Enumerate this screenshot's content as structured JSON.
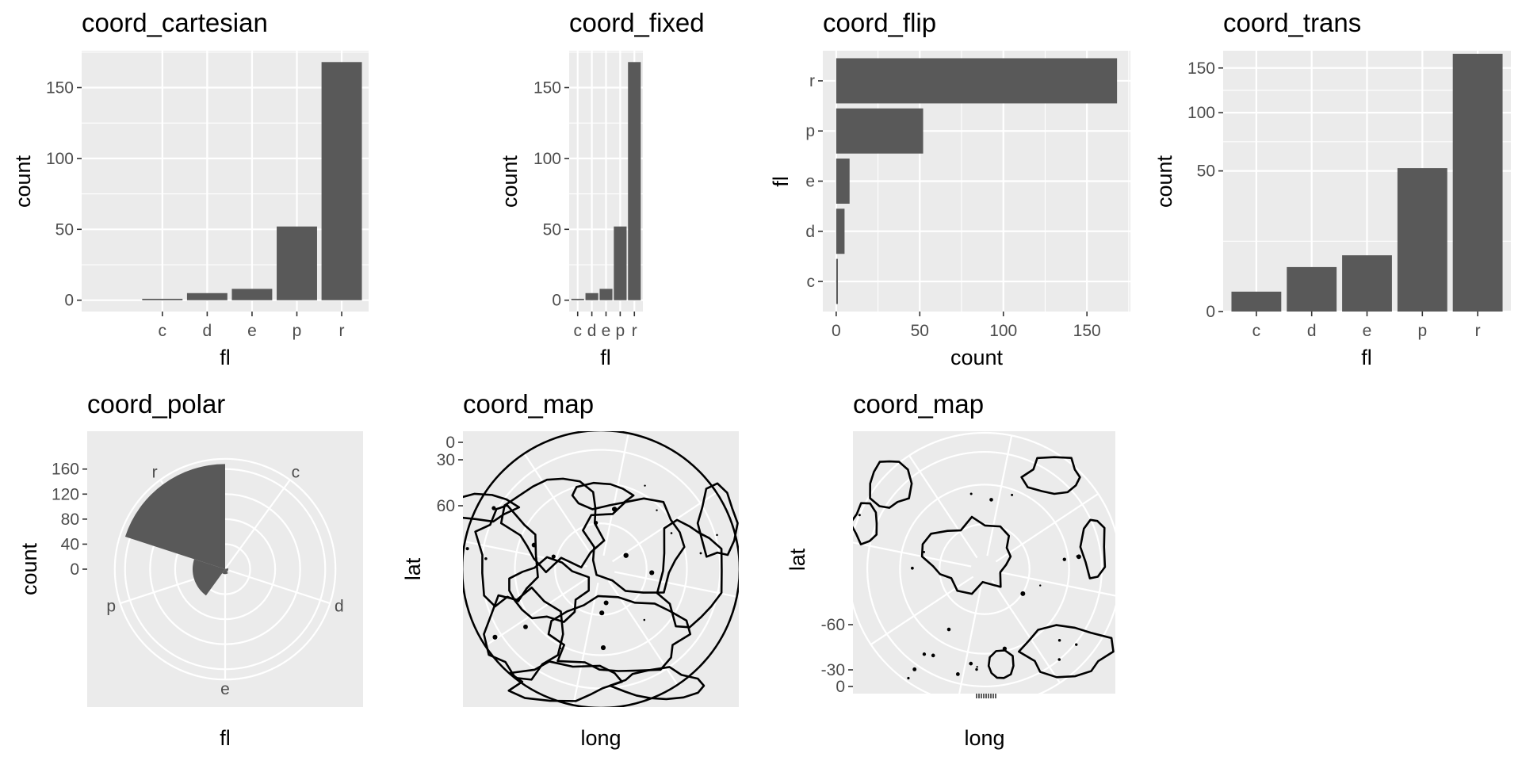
{
  "chart_data": [
    {
      "id": "cartesian",
      "type": "bar",
      "title": "coord_cartesian",
      "xlabel": "fl",
      "ylabel": "count",
      "categories": [
        "c",
        "d",
        "e",
        "p",
        "r"
      ],
      "values": [
        1,
        5,
        8,
        52,
        168
      ],
      "ylim": [
        -8,
        176
      ],
      "yticks": [
        0,
        50,
        100,
        150
      ],
      "xlim": [
        -0.8,
        5.6
      ]
    },
    {
      "id": "fixed",
      "type": "bar",
      "title": "coord_fixed",
      "xlabel": "fl",
      "ylabel": "count",
      "categories": [
        "c",
        "d",
        "e",
        "p",
        "r"
      ],
      "values": [
        1,
        5,
        8,
        52,
        168
      ],
      "ylim": [
        -8,
        176
      ],
      "yticks": [
        0,
        50,
        100,
        150
      ]
    },
    {
      "id": "flip",
      "type": "bar",
      "orientation": "horizontal",
      "title": "coord_flip",
      "xlabel": "count",
      "ylabel": "fl",
      "categories": [
        "c",
        "d",
        "e",
        "p",
        "r"
      ],
      "values": [
        1,
        5,
        8,
        52,
        168
      ],
      "xlim": [
        -8,
        176
      ],
      "xticks": [
        0,
        50,
        100,
        150
      ]
    },
    {
      "id": "trans",
      "type": "bar",
      "title": "coord_trans",
      "xlabel": "fl",
      "ylabel": "count",
      "categories": [
        "c",
        "d",
        "e",
        "p",
        "r"
      ],
      "values": [
        1,
        5,
        8,
        52,
        168
      ],
      "scale": "sqrt",
      "ylim": [
        0,
        172
      ],
      "yticks": [
        0,
        50,
        100,
        150
      ]
    },
    {
      "id": "polar",
      "type": "bar",
      "coord": "polar",
      "title": "coord_polar",
      "xlabel": "fl",
      "ylabel": "count",
      "categories": [
        "c",
        "d",
        "e",
        "p",
        "r"
      ],
      "values": [
        1,
        5,
        8,
        52,
        168
      ],
      "rticks": [
        0,
        40,
        80,
        120,
        160
      ]
    },
    {
      "id": "map_north",
      "type": "map",
      "projection": "orthographic",
      "title": "coord_map",
      "xlabel": "long",
      "ylabel": "lat",
      "orientation": [
        90,
        0,
        0
      ],
      "yticks": [
        "0",
        "30",
        "60"
      ]
    },
    {
      "id": "map_south",
      "type": "map",
      "projection": "orthographic",
      "title": "coord_map",
      "xlabel": "long",
      "ylabel": "lat",
      "orientation": [
        -90,
        0,
        0
      ],
      "yticks": [
        "-60",
        "-30",
        "0"
      ]
    }
  ]
}
